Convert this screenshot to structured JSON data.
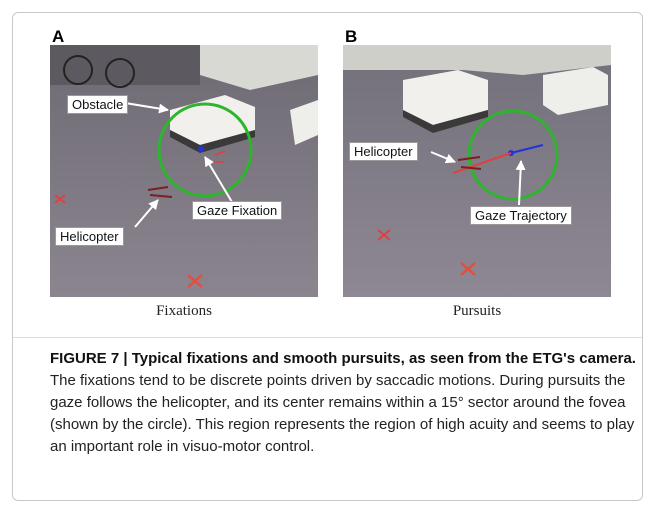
{
  "figure": {
    "panels": [
      {
        "label": "A",
        "caption": "Fixations",
        "annotations": [
          "Obstacle",
          "Gaze Fixation",
          "Helicopter"
        ]
      },
      {
        "label": "B",
        "caption": "Pursuits",
        "annotations": [
          "Helicopter",
          "Gaze Trajectory"
        ]
      }
    ],
    "caption": {
      "label": "FIGURE 7 | Typical fixations and smooth pursuits, as seen from the ETG's camera.",
      "text": "The fixations tend to be discrete points driven by saccadic motions. During pursuits the gaze follows the helicopter, and its center remains within a 15° sector around the fovea (shown by the circle). This region represents the region of high acuity and seems to play an important role in visuo-motor control."
    }
  }
}
